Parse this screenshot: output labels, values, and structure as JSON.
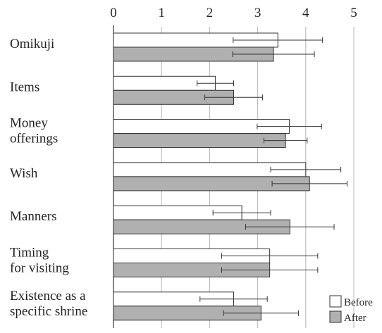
{
  "chart_data": {
    "type": "bar",
    "orientation": "horizontal",
    "title": "",
    "xlabel": "",
    "ylabel": "",
    "xlim": [
      0,
      5.5
    ],
    "x_ticks": [
      0,
      1,
      2,
      3,
      4,
      5
    ],
    "grid": true,
    "legend_position": "bottom-right",
    "categories": [
      [
        "Omikuji"
      ],
      [
        "Items"
      ],
      [
        "Money",
        "offerings"
      ],
      [
        "Wish"
      ],
      [
        "Manners"
      ],
      [
        "Timing",
        "for visiting"
      ],
      [
        "Existence as a",
        "specific shrine"
      ]
    ],
    "series": [
      {
        "name": "Before",
        "color": "#ffffff",
        "values": [
          3.42,
          2.12,
          3.66,
          4.0,
          2.67,
          3.25,
          2.5
        ],
        "error": [
          0.93,
          0.38,
          0.67,
          0.73,
          0.6,
          1.0,
          0.7
        ]
      },
      {
        "name": "After",
        "color": "#b0b0b0",
        "values": [
          3.33,
          2.5,
          3.58,
          4.08,
          3.67,
          3.25,
          3.07
        ],
        "error": [
          0.85,
          0.6,
          0.45,
          0.78,
          0.92,
          1.0,
          0.78
        ]
      }
    ]
  }
}
